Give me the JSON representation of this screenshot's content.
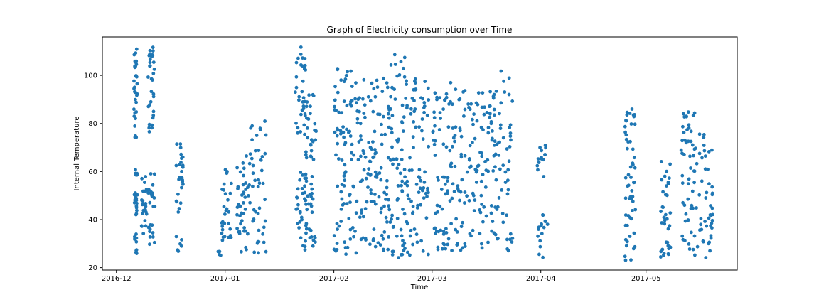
{
  "chart_data": {
    "type": "scatter",
    "title": "Graph of Electricity consumption over Time",
    "xlabel": "Time",
    "ylabel": "Internal Temperature",
    "x_ticks": [
      "2016-12",
      "2017-01",
      "2017-02",
      "2017-03",
      "2017-04",
      "2017-05"
    ],
    "y_ticks": [
      20,
      40,
      60,
      80,
      100
    ],
    "xlim": [
      "2016-11-27",
      "2017-05-27"
    ],
    "ylim": [
      19,
      116
    ],
    "grid": false,
    "marker_color": "#1f77b4",
    "clusters": [
      {
        "x": [
          "2016-12-06",
          "2016-12-07"
        ],
        "y": [
          [
            24,
            34
          ],
          [
            40,
            62
          ],
          [
            74,
            111
          ]
        ]
      },
      {
        "x": [
          "2016-12-08",
          "2016-12-10"
        ],
        "y": [
          [
            34,
            60
          ]
        ]
      },
      {
        "x": [
          "2016-12-10",
          "2016-12-12"
        ],
        "y": [
          [
            27,
            38
          ],
          [
            45,
            60
          ],
          [
            75,
            112
          ]
        ]
      },
      {
        "x": [
          "2016-12-18",
          "2016-12-20"
        ],
        "y": [
          [
            26,
            33
          ],
          [
            43,
            72
          ]
        ]
      },
      {
        "x": [
          "2016-12-30",
          "2016-12-31"
        ],
        "y": [
          [
            25,
            27
          ]
        ]
      },
      {
        "x": [
          "2016-12-31",
          "2017-01-03"
        ],
        "y": [
          [
            30,
            62
          ]
        ]
      },
      {
        "x": [
          "2017-01-04",
          "2017-01-07"
        ],
        "y": [
          [
            26,
            45
          ],
          [
            45,
            65
          ]
        ]
      },
      {
        "x": [
          "2017-01-07",
          "2017-01-13"
        ],
        "y": [
          [
            26,
            30
          ],
          [
            30,
            60
          ],
          [
            60,
            81
          ]
        ]
      },
      {
        "x": [
          "2017-01-21",
          "2017-01-24"
        ],
        "y": [
          [
            27,
            60
          ],
          [
            75,
            113
          ]
        ]
      },
      {
        "x": [
          "2017-01-24",
          "2017-01-27"
        ],
        "y": [
          [
            27,
            60
          ],
          [
            65,
            95
          ]
        ]
      },
      {
        "x": [
          "2017-02-01",
          "2017-02-06"
        ],
        "y": [
          [
            24,
            105
          ]
        ]
      },
      {
        "x": [
          "2017-02-06",
          "2017-02-12"
        ],
        "y": [
          [
            26,
            101
          ]
        ]
      },
      {
        "x": [
          "2017-02-12",
          "2017-02-17"
        ],
        "y": [
          [
            27,
            101
          ]
        ]
      },
      {
        "x": [
          "2017-02-17",
          "2017-02-22"
        ],
        "y": [
          [
            24,
            109
          ]
        ]
      },
      {
        "x": [
          "2017-02-22",
          "2017-02-28"
        ],
        "y": [
          [
            25,
            105
          ]
        ]
      },
      {
        "x": [
          "2017-03-01",
          "2017-03-06"
        ],
        "y": [
          [
            27,
            93
          ]
        ]
      },
      {
        "x": [
          "2017-03-06",
          "2017-03-12"
        ],
        "y": [
          [
            27,
            98
          ]
        ]
      },
      {
        "x": [
          "2017-03-12",
          "2017-03-18"
        ],
        "y": [
          [
            27,
            97
          ]
        ]
      },
      {
        "x": [
          "2017-03-18",
          "2017-03-24"
        ],
        "y": [
          [
            25,
            102
          ]
        ]
      },
      {
        "x": [
          "2017-03-31",
          "2017-04-03"
        ],
        "y": [
          [
            24,
            42
          ],
          [
            55,
            71
          ]
        ]
      },
      {
        "x": [
          "2017-04-25",
          "2017-04-28"
        ],
        "y": [
          [
            23,
            50
          ],
          [
            50,
            86
          ]
        ]
      },
      {
        "x": [
          "2017-05-05",
          "2017-05-08"
        ],
        "y": [
          [
            24,
            65
          ]
        ]
      },
      {
        "x": [
          "2017-05-11",
          "2017-05-15"
        ],
        "y": [
          [
            25,
            85
          ]
        ]
      },
      {
        "x": [
          "2017-05-15",
          "2017-05-20"
        ],
        "y": [
          [
            24,
            77
          ]
        ]
      }
    ]
  }
}
